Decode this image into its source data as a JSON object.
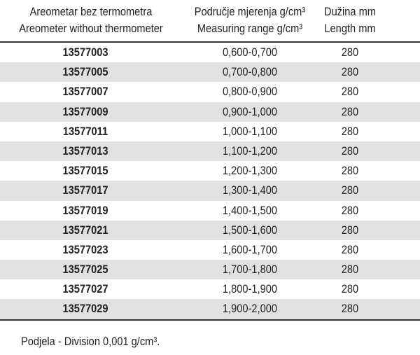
{
  "header": {
    "col1": [
      "Areometar bez termometra",
      "Areometer without thermometer"
    ],
    "col2": [
      "Područje mjerenja g/cm³",
      "Measuring range g/cm³"
    ],
    "col3": [
      "Dužina mm",
      "Length mm"
    ]
  },
  "rows": [
    {
      "code": "13577003",
      "range": "0,600-0,700",
      "length": "280"
    },
    {
      "code": "13577005",
      "range": "0,700-0,800",
      "length": "280"
    },
    {
      "code": "13577007",
      "range": "0,800-0,900",
      "length": "280"
    },
    {
      "code": "13577009",
      "range": "0,900-1,000",
      "length": "280"
    },
    {
      "code": "13577011",
      "range": "1,000-1,100",
      "length": "280"
    },
    {
      "code": "13577013",
      "range": "1,100-1,200",
      "length": "280"
    },
    {
      "code": "13577015",
      "range": "1,200-1,300",
      "length": "280"
    },
    {
      "code": "13577017",
      "range": "1,300-1,400",
      "length": "280"
    },
    {
      "code": "13577019",
      "range": "1,400-1,500",
      "length": "280"
    },
    {
      "code": "13577021",
      "range": "1,500-1,600",
      "length": "280"
    },
    {
      "code": "13577023",
      "range": "1,600-1,700",
      "length": "280"
    },
    {
      "code": "13577025",
      "range": "1,700-1,800",
      "length": "280"
    },
    {
      "code": "13577027",
      "range": "1,800-1,900",
      "length": "280"
    },
    {
      "code": "13577029",
      "range": "1,900-2,000",
      "length": "280"
    }
  ],
  "footnote": "Podjela - Division 0,001 g/cm³.",
  "colors": {
    "stripe": "#e1e1e1",
    "rule": "#333333"
  }
}
